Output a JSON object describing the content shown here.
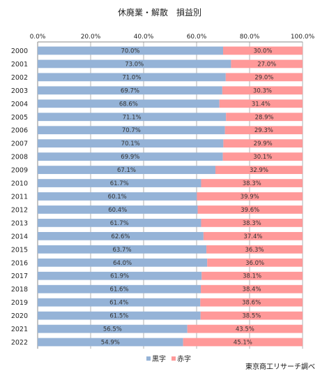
{
  "chart_data": {
    "type": "bar",
    "orientation": "horizontal",
    "stacked": "percent",
    "title": "休廃業・解散　損益別",
    "categories": [
      "2000",
      "2001",
      "2002",
      "2003",
      "2004",
      "2005",
      "2006",
      "2007",
      "2008",
      "2009",
      "2010",
      "2011",
      "2012",
      "2013",
      "2014",
      "2015",
      "2016",
      "2017",
      "2018",
      "2019",
      "2020",
      "2021",
      "2022"
    ],
    "series": [
      {
        "name": "黒字",
        "color": "#95b3d7",
        "values": [
          70.0,
          73.0,
          71.0,
          69.7,
          68.6,
          71.1,
          70.7,
          70.1,
          69.9,
          67.1,
          61.7,
          60.1,
          60.4,
          61.7,
          62.6,
          63.7,
          64.0,
          61.9,
          61.6,
          61.4,
          61.5,
          56.5,
          54.9
        ],
        "labels": [
          "70.0%",
          "73.0%",
          "71.0%",
          "69.7%",
          "68.6%",
          "71.1%",
          "70.7%",
          "70.1%",
          "69.9%",
          "67.1%",
          "61.7%",
          "60.1%",
          "60.4%",
          "61.7%",
          "62.6%",
          "63.7%",
          "64.0%",
          "61.9%",
          "61.6%",
          "61.4%",
          "61.5%",
          "56.5%",
          "54.9%"
        ]
      },
      {
        "name": "赤字",
        "color": "#ff9999",
        "values": [
          30.0,
          27.0,
          29.0,
          30.3,
          31.4,
          28.9,
          29.3,
          29.9,
          30.1,
          32.9,
          38.3,
          39.9,
          39.6,
          38.3,
          37.4,
          36.3,
          36.0,
          38.1,
          38.4,
          38.6,
          38.5,
          43.5,
          45.1
        ],
        "labels": [
          "30.0%",
          "27.0%",
          "29.0%",
          "30.3%",
          "31.4%",
          "28.9%",
          "29.3%",
          "29.9%",
          "30.1%",
          "32.9%",
          "38.3%",
          "39.9%",
          "39.6%",
          "38.3%",
          "37.4%",
          "36.3%",
          "36.0%",
          "38.1%",
          "38.4%",
          "38.6%",
          "38.5%",
          "43.5%",
          "45.1%"
        ]
      }
    ],
    "xlim": [
      0,
      100
    ],
    "x_ticks": [
      "0.0%",
      "20.0%",
      "40.0%",
      "60.0%",
      "80.0%",
      "100.0%"
    ],
    "x_axis_position": "top",
    "grid": true,
    "legend_position": "bottom",
    "source": "東京商工リサーチ調べ"
  }
}
